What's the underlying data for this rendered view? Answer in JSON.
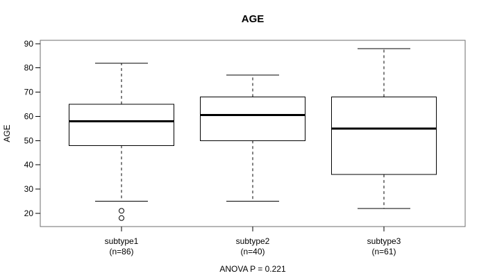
{
  "figure": {
    "title": "AGE",
    "y_axis_label": "AGE",
    "footnote": "ANOVA P = 0.221"
  },
  "chart_data": {
    "type": "boxplot",
    "title": "AGE",
    "ylabel": "AGE",
    "xlabel": "",
    "annotation": "ANOVA P = 0.221",
    "anova_p": 0.221,
    "grid": false,
    "legend": "none",
    "ylim": [
      14.5,
      91.4
    ],
    "y_ticks": [
      20,
      30,
      40,
      50,
      60,
      70,
      80,
      90
    ],
    "groups": [
      {
        "label": "subtype1",
        "sublabel": "(n=86)",
        "n": 86,
        "stats": {
          "whisker_low": 25,
          "q1": 48,
          "median": 58,
          "q3": 65,
          "whisker_high": 82
        },
        "outliers": [
          21,
          18
        ]
      },
      {
        "label": "subtype2",
        "sublabel": "(n=40)",
        "n": 40,
        "stats": {
          "whisker_low": 25,
          "q1": 50,
          "median": 60.5,
          "q3": 68,
          "whisker_high": 77
        },
        "outliers": []
      },
      {
        "label": "subtype3",
        "sublabel": "(n=61)",
        "n": 61,
        "stats": {
          "whisker_low": 22,
          "q1": 36,
          "median": 55,
          "q3": 68,
          "whisker_high": 88
        },
        "outliers": []
      }
    ],
    "colors": {
      "box_stroke": "#000000",
      "median": "#000000",
      "whisker": "#000000",
      "frame": "#6e6e6e",
      "text": "#000000",
      "background": "#ffffff"
    }
  }
}
